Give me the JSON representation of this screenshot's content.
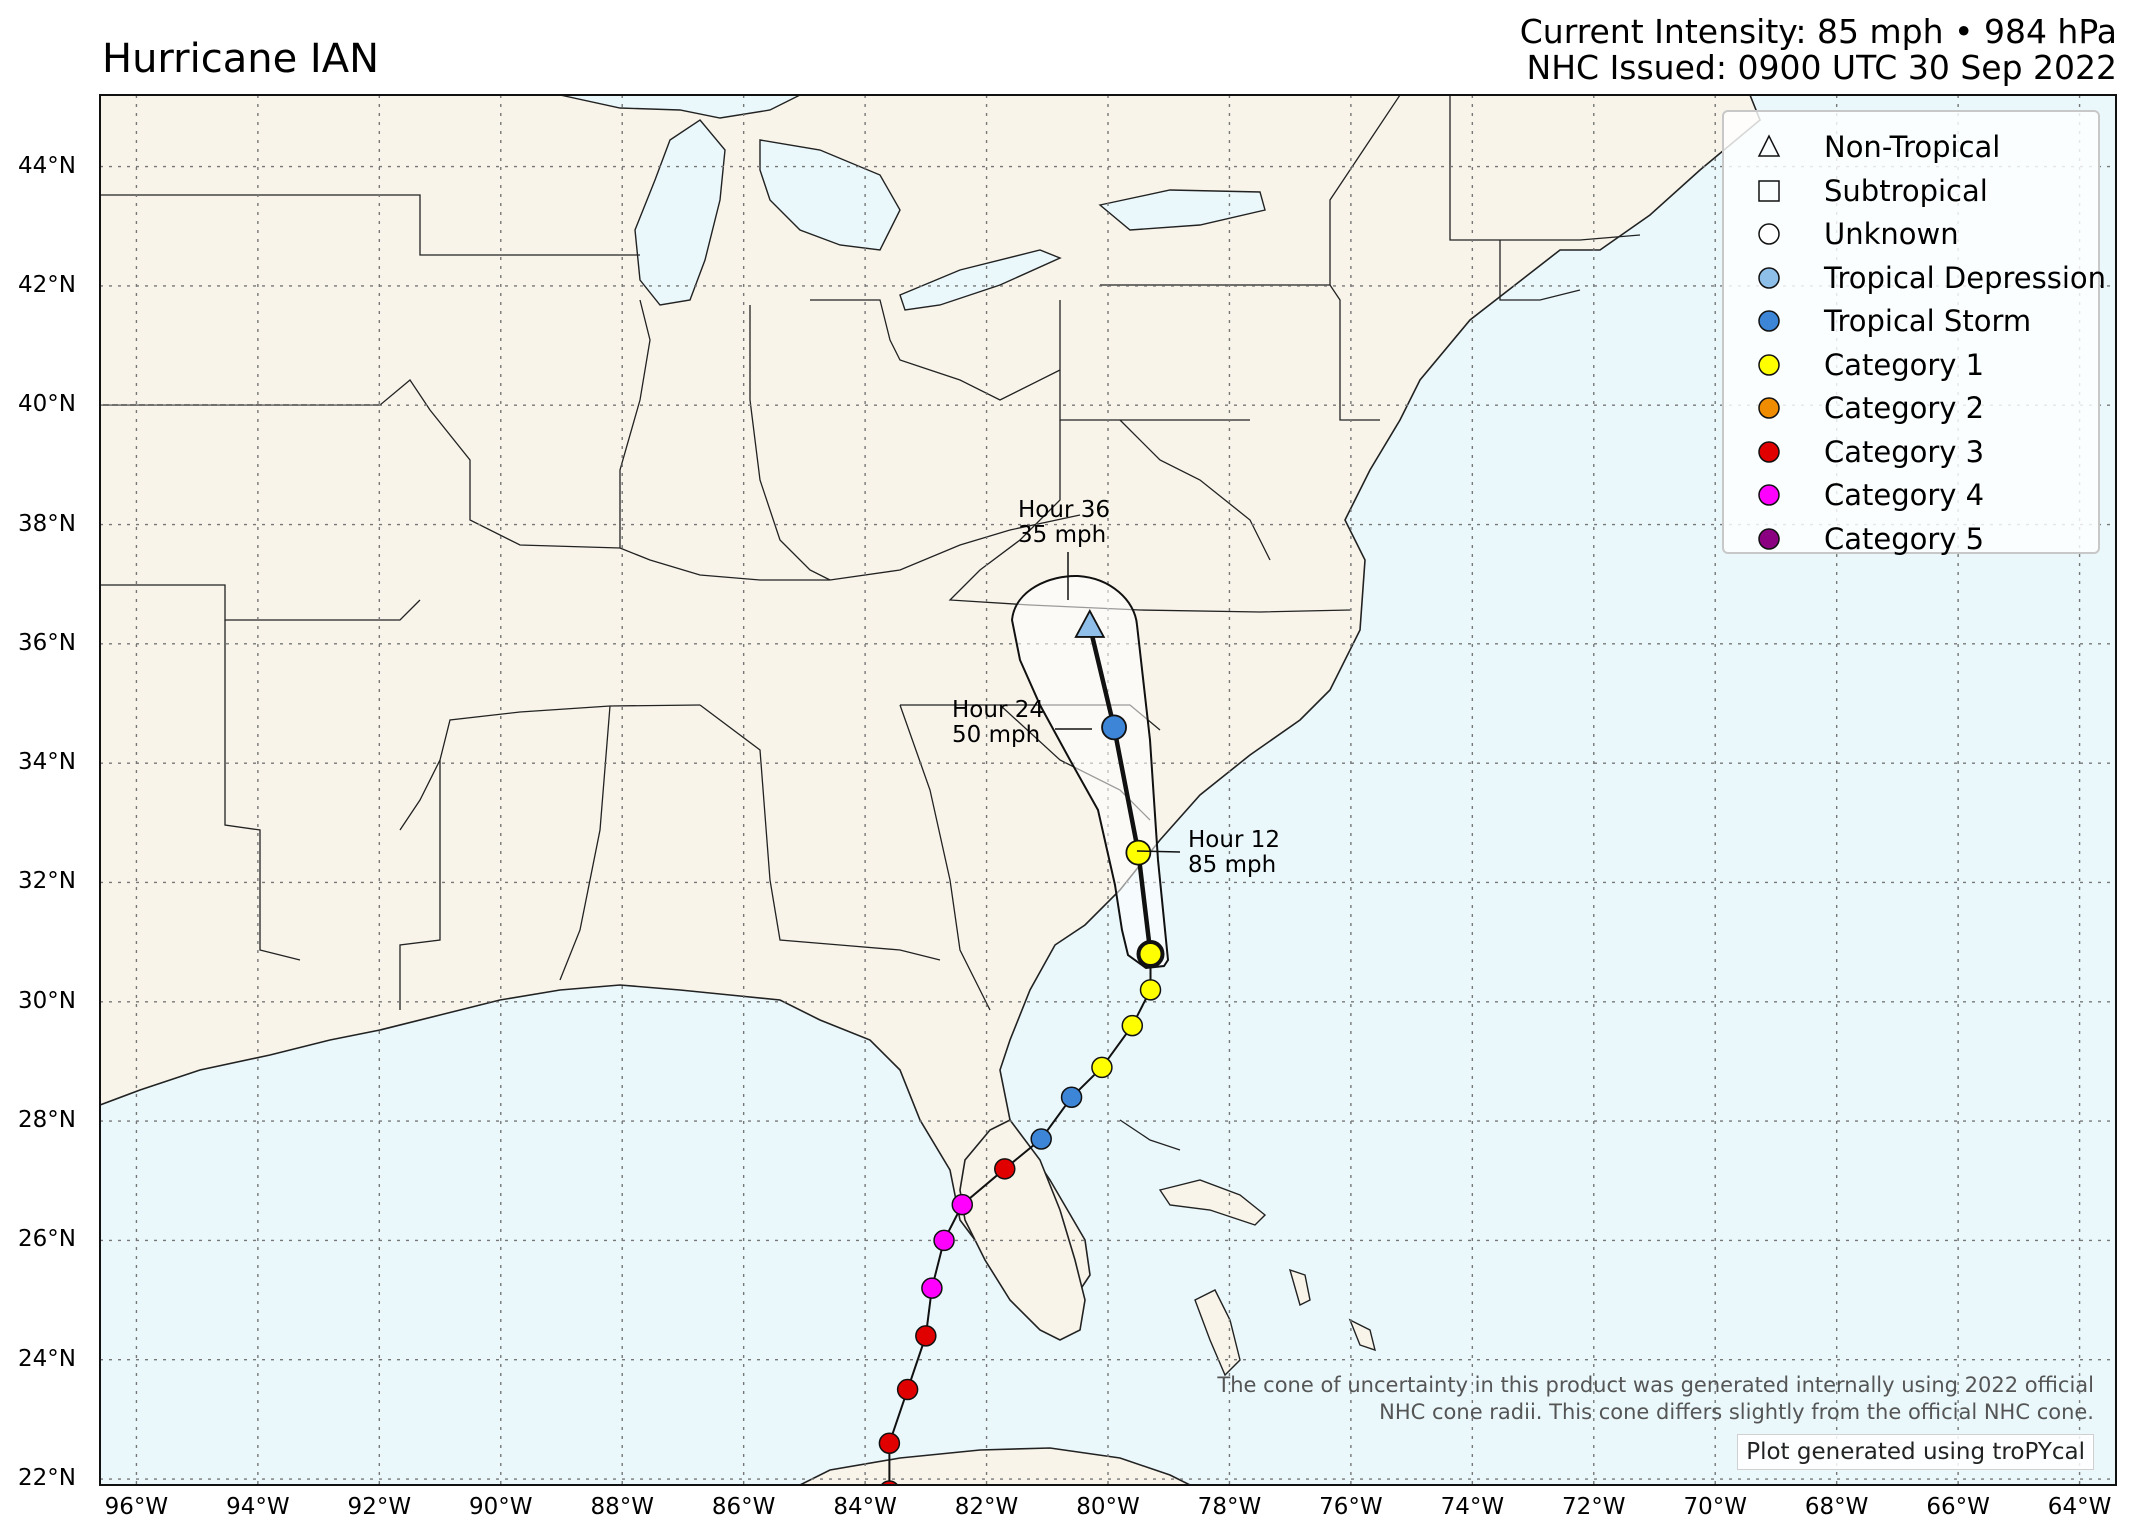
{
  "title": "Hurricane IAN",
  "subtitle_intensity": "Current Intensity: 85 mph • 984 hPa",
  "subtitle_issued": "NHC Issued: 0900 UTC 30 Sep 2022",
  "colors": {
    "land": "#f8f4ea",
    "ocean": "#eaf8fc",
    "border": "#222222",
    "grid": "#777777",
    "non_tropical": "#8fbfe8",
    "tropical_depression": "#8ebfe8",
    "tropical_storm": "#3d85d6",
    "category_1": "#ffff00",
    "category_2": "#f08c00",
    "category_3": "#e00000",
    "category_4": "#ff00ff",
    "category_5": "#8a0080"
  },
  "legend": [
    {
      "label": "Non-Tropical",
      "marker": "triangle",
      "color": "none"
    },
    {
      "label": "Subtropical",
      "marker": "square",
      "color": "none"
    },
    {
      "label": "Unknown",
      "marker": "circle",
      "color": "#ffffff"
    },
    {
      "label": "Tropical Depression",
      "marker": "circle",
      "color": "#8ebfe8"
    },
    {
      "label": "Tropical Storm",
      "marker": "circle",
      "color": "#3d85d6"
    },
    {
      "label": "Category 1",
      "marker": "circle",
      "color": "#ffff00"
    },
    {
      "label": "Category 2",
      "marker": "circle",
      "color": "#f08c00"
    },
    {
      "label": "Category 3",
      "marker": "circle",
      "color": "#e00000"
    },
    {
      "label": "Category 4",
      "marker": "circle",
      "color": "#ff00ff"
    },
    {
      "label": "Category 5",
      "marker": "circle",
      "color": "#8a0080"
    }
  ],
  "axes": {
    "lat_labels": [
      "44°N",
      "42°N",
      "40°N",
      "38°N",
      "36°N",
      "34°N",
      "32°N",
      "30°N",
      "28°N",
      "26°N",
      "24°N",
      "22°N"
    ],
    "lat_values": [
      44,
      42,
      40,
      38,
      36,
      34,
      32,
      30,
      28,
      26,
      24,
      22
    ],
    "lon_labels": [
      "96°W",
      "94°W",
      "92°W",
      "90°W",
      "88°W",
      "86°W",
      "84°W",
      "82°W",
      "80°W",
      "78°W",
      "76°W",
      "74°W",
      "72°W",
      "70°W",
      "68°W",
      "66°W",
      "64°W"
    ],
    "lon_values": [
      -96,
      -94,
      -92,
      -90,
      -88,
      -86,
      -84,
      -82,
      -80,
      -78,
      -76,
      -74,
      -72,
      -70,
      -68,
      -66,
      -64
    ],
    "lon_range": [
      -96.6,
      -63.4
    ],
    "lat_range": [
      21.9,
      45.2
    ],
    "grid": true
  },
  "past_track": [
    {
      "lat": 21.8,
      "lon": -83.6,
      "category": "category_3"
    },
    {
      "lat": 22.6,
      "lon": -83.6,
      "category": "category_3"
    },
    {
      "lat": 23.5,
      "lon": -83.3,
      "category": "category_3"
    },
    {
      "lat": 24.4,
      "lon": -83.0,
      "category": "category_3"
    },
    {
      "lat": 25.2,
      "lon": -82.9,
      "category": "category_4"
    },
    {
      "lat": 26.0,
      "lon": -82.7,
      "category": "category_4"
    },
    {
      "lat": 26.6,
      "lon": -82.4,
      "category": "category_4"
    },
    {
      "lat": 27.2,
      "lon": -81.7,
      "category": "category_3"
    },
    {
      "lat": 27.7,
      "lon": -81.1,
      "category": "tropical_storm"
    },
    {
      "lat": 28.4,
      "lon": -80.6,
      "category": "tropical_storm"
    },
    {
      "lat": 28.9,
      "lon": -80.1,
      "category": "category_1"
    },
    {
      "lat": 29.6,
      "lon": -79.6,
      "category": "category_1"
    },
    {
      "lat": 30.2,
      "lon": -79.3,
      "category": "category_1"
    }
  ],
  "forecast_track": [
    {
      "lat": 30.8,
      "lon": -79.3,
      "category": "category_1",
      "marker": "circle"
    },
    {
      "lat": 32.5,
      "lon": -79.5,
      "category": "category_1",
      "marker": "circle"
    },
    {
      "lat": 34.6,
      "lon": -79.9,
      "category": "tropical_storm",
      "marker": "circle"
    },
    {
      "lat": 36.3,
      "lon": -80.3,
      "category": "non_tropical",
      "marker": "triangle"
    }
  ],
  "forecast_labels": [
    {
      "line1": "Hour 12",
      "line2": "85 mph"
    },
    {
      "line1": "Hour 24",
      "line2": "50 mph"
    },
    {
      "line1": "Hour 36",
      "line2": "35 mph"
    }
  ],
  "cone_note_line1": "The cone of uncertainty in this product was generated internally using 2022 official",
  "cone_note_line2": "NHC cone radii. This cone differs slightly from the official NHC cone.",
  "credit": "Plot generated using troPYcal"
}
